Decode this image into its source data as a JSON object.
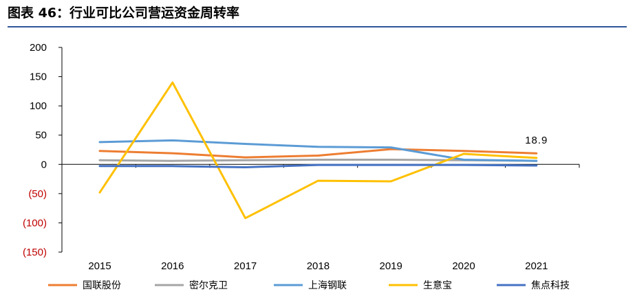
{
  "figure_title": "图表 46：行业可比公司营运资金周转率",
  "chart_data": {
    "type": "line",
    "categories": [
      "2015",
      "2016",
      "2017",
      "2018",
      "2019",
      "2020",
      "2021"
    ],
    "ylim": [
      -150,
      200
    ],
    "yticks": [
      200,
      150,
      100,
      50,
      0,
      -50,
      -100,
      -150
    ],
    "ytick_labels": [
      "200",
      "150",
      "100",
      "50",
      "0",
      "(50)",
      "(100)",
      "(150)"
    ],
    "grid": false,
    "legend_position": "bottom",
    "series": [
      {
        "name": "国联股份",
        "color": "#ed7d31",
        "values": [
          23,
          19,
          12,
          15,
          26,
          23,
          18.9
        ]
      },
      {
        "name": "密尔克卫",
        "color": "#a5a5a5",
        "values": [
          7,
          6,
          7,
          8,
          8,
          7,
          6
        ]
      },
      {
        "name": "上海钢联",
        "color": "#5b9bd5",
        "values": [
          38,
          41,
          35,
          30,
          29,
          8,
          6
        ]
      },
      {
        "name": "生意宝",
        "color": "#ffc000",
        "values": [
          -48,
          140,
          -92,
          -28,
          -29,
          18,
          11
        ]
      },
      {
        "name": "焦点科技",
        "color": "#4472c4",
        "values": [
          -3,
          -3,
          -5,
          -1,
          -1,
          -1,
          -2
        ]
      }
    ],
    "annotations": [
      {
        "text": "18.9",
        "series": "国联股份",
        "category": "2021"
      }
    ]
  }
}
